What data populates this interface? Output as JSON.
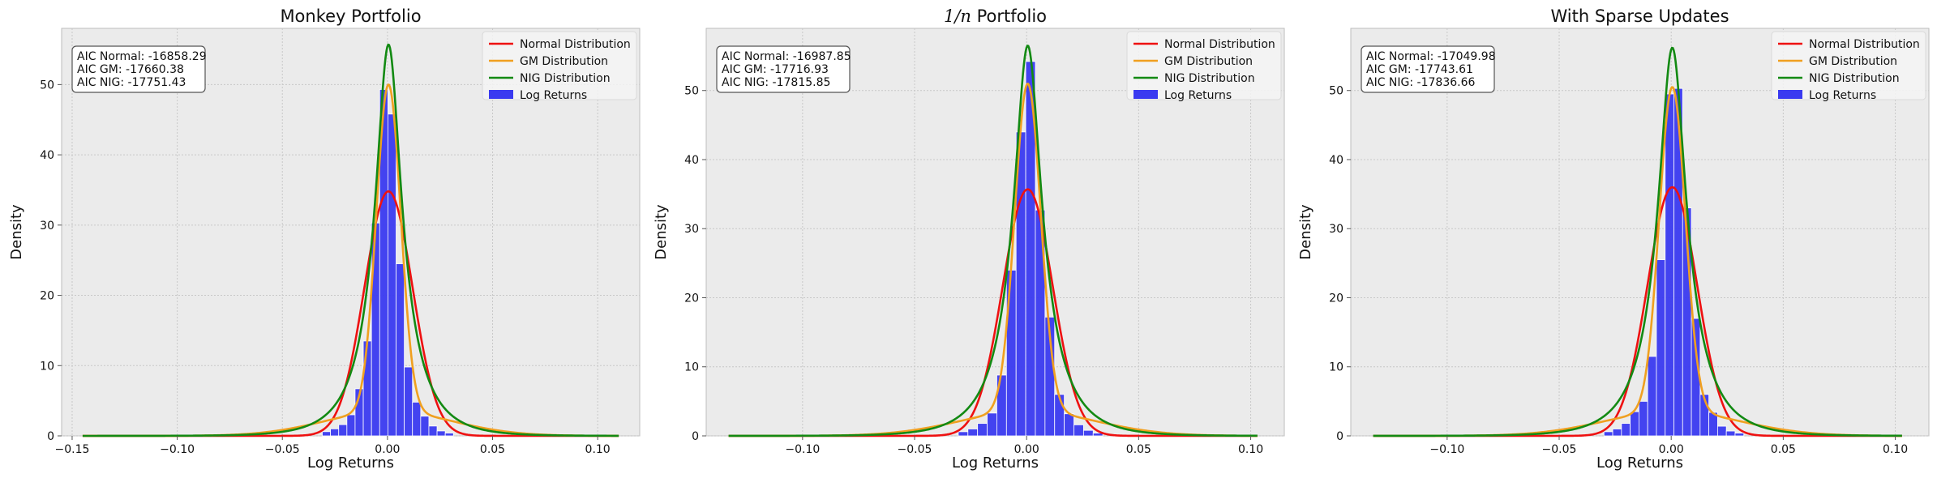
{
  "chart_data": [
    {
      "type": "histogram",
      "title": "Monkey Portfolio",
      "xlabel": "Log Returns",
      "ylabel": "Density",
      "xlim": [
        -0.155,
        0.12
      ],
      "ylim": [
        0,
        58
      ],
      "xticks": [
        -0.15,
        -0.1,
        -0.05,
        0.0,
        0.05,
        0.1
      ],
      "xtick_labels": [
        "−0.15",
        "−0.10",
        "−0.05",
        "0.00",
        "0.05",
        "0.10"
      ],
      "yticks": [
        0,
        10,
        20,
        30,
        40,
        50
      ],
      "grid": true,
      "legend_position": "top-right",
      "curve_x_range": [
        -0.145,
        0.11
      ],
      "series": [
        {
          "name": "Normal Distribution",
          "kind": "line",
          "color": "#ee1111",
          "model": "normal",
          "mu": 0.0005,
          "peak": 34.8
        },
        {
          "name": "GM Distribution",
          "kind": "line",
          "color": "#f0a020",
          "model": "mixture",
          "mu": 0.0005,
          "peak": 50.0
        },
        {
          "name": "NIG Distribution",
          "kind": "line",
          "color": "#138a13",
          "model": "nig",
          "mu": 0.0005,
          "peak": 55.7
        },
        {
          "name": "Log Returns",
          "kind": "bar",
          "color": "#3a3af0"
        }
      ],
      "hist": {
        "bin_width": 0.0039,
        "bins": [
          {
            "x": -0.031,
            "y": 0.6
          },
          {
            "x": -0.0271,
            "y": 1.0
          },
          {
            "x": -0.0232,
            "y": 1.6
          },
          {
            "x": -0.0193,
            "y": 3.0
          },
          {
            "x": -0.0154,
            "y": 6.7
          },
          {
            "x": -0.0115,
            "y": 13.5
          },
          {
            "x": -0.0076,
            "y": 30.3
          },
          {
            "x": -0.0037,
            "y": 49.3
          },
          {
            "x": 0.0002,
            "y": 45.8
          },
          {
            "x": 0.0041,
            "y": 24.5
          },
          {
            "x": 0.008,
            "y": 9.8
          },
          {
            "x": 0.0119,
            "y": 4.8
          },
          {
            "x": 0.0158,
            "y": 2.8
          },
          {
            "x": 0.0197,
            "y": 1.4
          },
          {
            "x": 0.0236,
            "y": 0.7
          },
          {
            "x": 0.0275,
            "y": 0.4
          }
        ]
      },
      "annotation": [
        "AIC Normal: -16858.29",
        "AIC GM: -17660.38",
        "AIC NIG: -17751.43"
      ]
    },
    {
      "type": "histogram",
      "title": "1/n Portfolio",
      "title_math_prefix": "1/",
      "title_math_var": "n",
      "title_text": " Portfolio",
      "xlabel": "Log Returns",
      "ylabel": "Density",
      "xlim": [
        -0.143,
        0.115
      ],
      "ylim": [
        0,
        59
      ],
      "xticks": [
        -0.1,
        -0.05,
        0.0,
        0.05,
        0.1
      ],
      "xtick_labels": [
        "−0.10",
        "−0.05",
        "0.00",
        "0.05",
        "0.10"
      ],
      "yticks": [
        0,
        10,
        20,
        30,
        40,
        50
      ],
      "grid": true,
      "legend_position": "top-right",
      "curve_x_range": [
        -0.133,
        0.103
      ],
      "series": [
        {
          "name": "Normal Distribution",
          "kind": "line",
          "color": "#ee1111",
          "model": "normal",
          "mu": 0.0005,
          "peak": 35.7
        },
        {
          "name": "GM Distribution",
          "kind": "line",
          "color": "#f0a020",
          "model": "mixture",
          "mu": 0.0005,
          "peak": 51.0
        },
        {
          "name": "NIG Distribution",
          "kind": "line",
          "color": "#138a13",
          "model": "nig",
          "mu": 0.0005,
          "peak": 56.5
        },
        {
          "name": "Log Returns",
          "kind": "bar",
          "color": "#3a3af0"
        }
      ],
      "hist": {
        "bin_width": 0.0043,
        "bins": [
          {
            "x": -0.0305,
            "y": 0.6
          },
          {
            "x": -0.0262,
            "y": 1.0
          },
          {
            "x": -0.0219,
            "y": 1.8
          },
          {
            "x": -0.0176,
            "y": 3.3
          },
          {
            "x": -0.0133,
            "y": 8.8
          },
          {
            "x": -0.009,
            "y": 24.0
          },
          {
            "x": -0.0047,
            "y": 44.0
          },
          {
            "x": -0.0004,
            "y": 54.2
          },
          {
            "x": 0.0039,
            "y": 32.7
          },
          {
            "x": 0.0082,
            "y": 17.2
          },
          {
            "x": 0.0125,
            "y": 6.0
          },
          {
            "x": 0.0168,
            "y": 3.2
          },
          {
            "x": 0.0211,
            "y": 1.6
          },
          {
            "x": 0.0254,
            "y": 0.8
          },
          {
            "x": 0.0297,
            "y": 0.4
          }
        ]
      },
      "annotation": [
        "AIC Normal: -16987.85",
        "AIC GM: -17716.93",
        "AIC NIG: -17815.85"
      ]
    },
    {
      "type": "histogram",
      "title": "With Sparse Updates",
      "xlabel": "Log Returns",
      "ylabel": "Density",
      "xlim": [
        -0.143,
        0.115
      ],
      "ylim": [
        0,
        59
      ],
      "xticks": [
        -0.1,
        -0.05,
        0.0,
        0.05,
        0.1
      ],
      "xtick_labels": [
        "−0.10",
        "−0.05",
        "0.00",
        "0.05",
        "0.10"
      ],
      "yticks": [
        0,
        10,
        20,
        30,
        40,
        50
      ],
      "grid": true,
      "legend_position": "top-right",
      "curve_x_range": [
        -0.133,
        0.103
      ],
      "series": [
        {
          "name": "Normal Distribution",
          "kind": "line",
          "color": "#ee1111",
          "model": "normal",
          "mu": 0.0005,
          "peak": 36.0
        },
        {
          "name": "GM Distribution",
          "kind": "line",
          "color": "#f0a020",
          "model": "mixture",
          "mu": 0.0005,
          "peak": 50.5
        },
        {
          "name": "NIG Distribution",
          "kind": "line",
          "color": "#138a13",
          "model": "nig",
          "mu": 0.0005,
          "peak": 56.2
        },
        {
          "name": "Log Returns",
          "kind": "bar",
          "color": "#3a3af0"
        }
      ],
      "hist": {
        "bin_width": 0.0039,
        "bins": [
          {
            "x": -0.03,
            "y": 0.6
          },
          {
            "x": -0.0261,
            "y": 1.0
          },
          {
            "x": -0.0222,
            "y": 1.8
          },
          {
            "x": -0.0183,
            "y": 3.5
          },
          {
            "x": -0.0144,
            "y": 5.0
          },
          {
            "x": -0.0105,
            "y": 11.5
          },
          {
            "x": -0.0066,
            "y": 25.5
          },
          {
            "x": -0.0027,
            "y": 49.5
          },
          {
            "x": 0.0012,
            "y": 50.3
          },
          {
            "x": 0.0051,
            "y": 33.0
          },
          {
            "x": 0.009,
            "y": 17.0
          },
          {
            "x": 0.0129,
            "y": 6.0
          },
          {
            "x": 0.0168,
            "y": 3.4
          },
          {
            "x": 0.0207,
            "y": 1.4
          },
          {
            "x": 0.0246,
            "y": 0.7
          },
          {
            "x": 0.0285,
            "y": 0.4
          }
        ]
      },
      "annotation": [
        "AIC Normal: -17049.98",
        "AIC GM: -17743.61",
        "AIC NIG: -17836.66"
      ]
    }
  ]
}
